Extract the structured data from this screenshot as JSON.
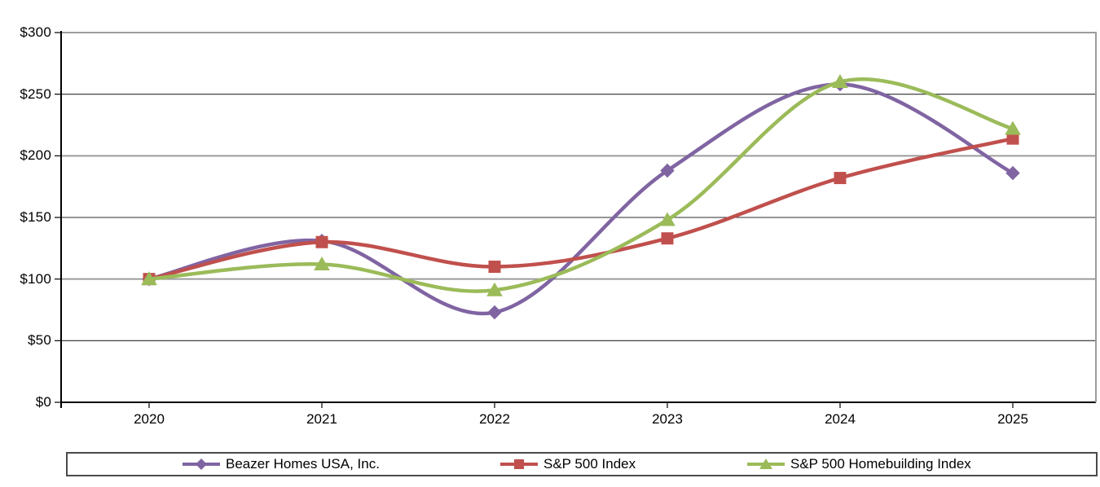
{
  "chart_data": {
    "type": "line",
    "smooth": true,
    "grid": true,
    "legend_position": "bottom",
    "categories": [
      "2020",
      "2021",
      "2022",
      "2023",
      "2024",
      "2025"
    ],
    "series": [
      {
        "name": "Beazer Homes USA, Inc.",
        "marker": "diamond",
        "color": "#8064A2",
        "values": [
          100,
          131,
          73,
          188,
          258,
          186
        ]
      },
      {
        "name": "S&P 500 Index",
        "marker": "square",
        "color": "#C0504D",
        "values": [
          100,
          130,
          110,
          133,
          182,
          214
        ]
      },
      {
        "name": "S&P 500 Homebuilding Index",
        "marker": "triangle",
        "color": "#9BBB59",
        "values": [
          100,
          112,
          91,
          148,
          260,
          222
        ]
      }
    ],
    "y_axis": {
      "min": 0,
      "max": 300,
      "step": 50,
      "tick_labels": [
        "$0",
        "$50",
        "$100",
        "$150",
        "$200",
        "$250",
        "$300"
      ]
    }
  },
  "colors": {
    "gridline_major": "#9c9c9c",
    "gridline_minor": "#2b2b2b",
    "axis": "#000000",
    "legend_border": "#4a4a4a",
    "background": "#ffffff"
  }
}
